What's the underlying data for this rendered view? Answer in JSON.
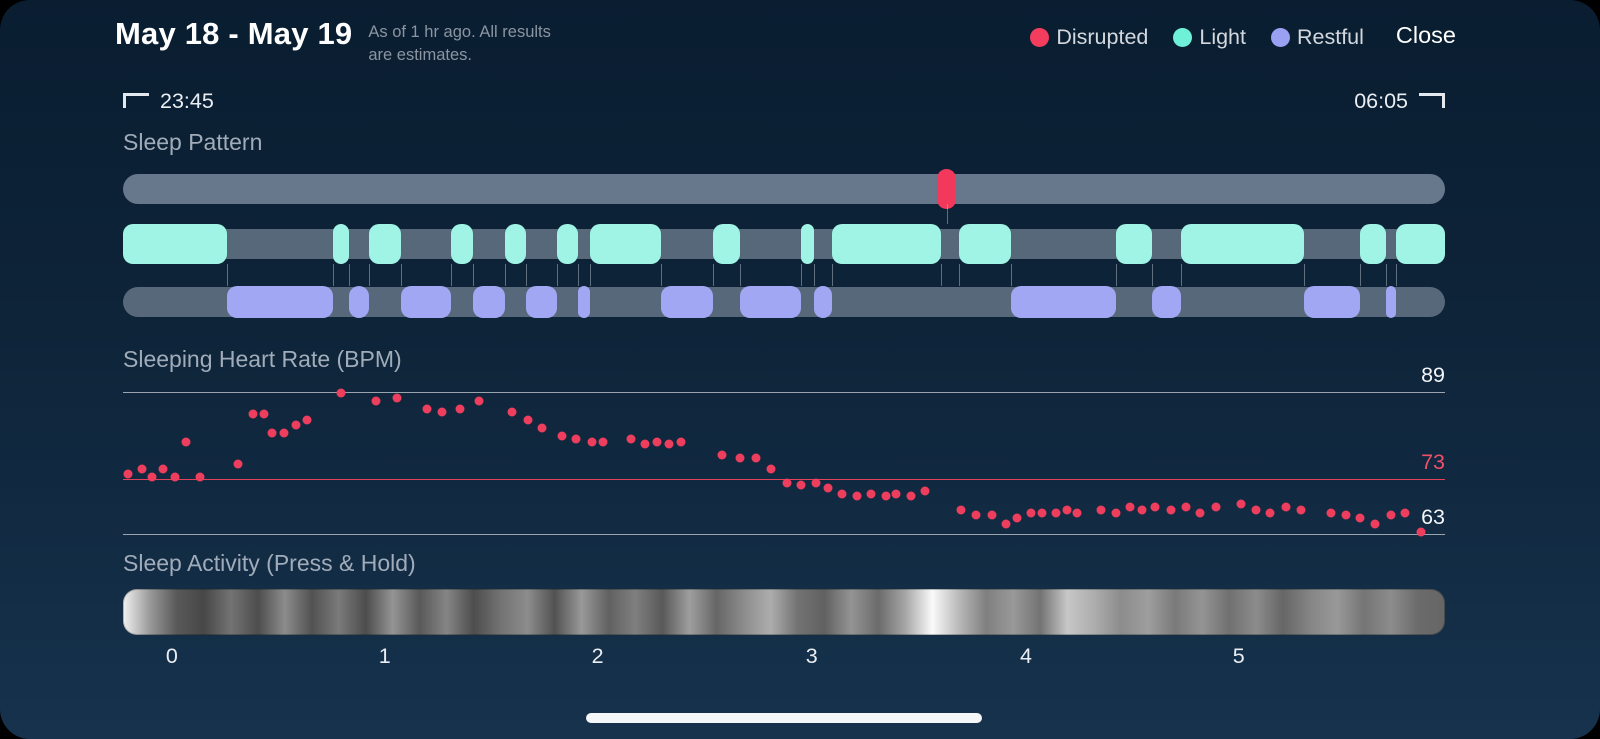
{
  "header": {
    "title": "May 18 - May 19",
    "subtitle_line1": "As of 1 hr ago. All results",
    "subtitle_line2": "are estimates.",
    "close_label": "Close",
    "legend": [
      {
        "label": "Disrupted",
        "color": "#f23d5e"
      },
      {
        "label": "Light",
        "color": "#6ef0d9"
      },
      {
        "label": "Restful",
        "color": "#9aa1f3"
      }
    ]
  },
  "timeline": {
    "start_time": "23:45",
    "end_time": "06:05"
  },
  "chart_data": [
    {
      "type": "timeline-bands",
      "title": "Sleep Pattern",
      "x_range": [
        "23:45",
        "06:05"
      ],
      "tracks": {
        "disrupted": {
          "color": "#f2395c",
          "bg_color": "#68788c",
          "segments_pct": [
            [
              61.6,
              63.0
            ]
          ]
        },
        "light": {
          "color": "#a0f4e5",
          "bg_color": "#57687b",
          "segments_pct": [
            [
              0,
              7.9
            ],
            [
              15.9,
              17.1
            ],
            [
              18.6,
              21.0
            ],
            [
              24.8,
              26.5
            ],
            [
              28.9,
              30.5
            ],
            [
              32.8,
              34.4
            ],
            [
              35.3,
              40.7
            ],
            [
              44.6,
              46.7
            ],
            [
              51.3,
              52.3
            ],
            [
              53.6,
              61.9
            ],
            [
              63.2,
              67.2
            ],
            [
              75.1,
              77.8
            ],
            [
              80.0,
              89.3
            ],
            [
              93.6,
              95.5
            ],
            [
              96.3,
              100
            ]
          ]
        },
        "restful": {
          "color": "#a2a7f4",
          "bg_color": "#57687b",
          "segments_pct": [
            [
              7.9,
              15.9
            ],
            [
              17.1,
              18.6
            ],
            [
              21.0,
              24.8
            ],
            [
              26.5,
              28.9
            ],
            [
              30.5,
              32.8
            ],
            [
              34.4,
              35.3
            ],
            [
              40.7,
              44.6
            ],
            [
              46.7,
              51.3
            ],
            [
              52.3,
              53.6
            ],
            [
              67.2,
              75.1
            ],
            [
              77.8,
              80.0
            ],
            [
              89.3,
              93.6
            ],
            [
              95.5,
              96.3
            ]
          ]
        }
      }
    },
    {
      "type": "scatter",
      "title": "Sleeping Heart Rate (BPM)",
      "ylim": [
        63,
        89
      ],
      "point_color": "#ee3e5e",
      "gridlines": [
        {
          "value": 89,
          "label": "89",
          "color": "#9aa4ae",
          "label_color": "#f3f5f7"
        },
        {
          "value": 73,
          "label": "73",
          "color": "#e0425c",
          "label_color": "#ef5068"
        },
        {
          "value": 63,
          "label": "63",
          "color": "#9aa4ae",
          "label_color": "#f3f5f7"
        }
      ],
      "points": [
        [
          0.4,
          74
        ],
        [
          1.4,
          75
        ],
        [
          2.2,
          73.5
        ],
        [
          3,
          75
        ],
        [
          3.9,
          73.5
        ],
        [
          4.8,
          80
        ],
        [
          5.8,
          73.5
        ],
        [
          8.7,
          76
        ],
        [
          9.8,
          85
        ],
        [
          10.7,
          85
        ],
        [
          11.3,
          81.5
        ],
        [
          12.2,
          81.5
        ],
        [
          13.1,
          83
        ],
        [
          13.9,
          84
        ],
        [
          16.5,
          89
        ],
        [
          19.1,
          87.5
        ],
        [
          20.7,
          88
        ],
        [
          23,
          86
        ],
        [
          24.1,
          85.5
        ],
        [
          25.5,
          86
        ],
        [
          26.9,
          87.5
        ],
        [
          29.4,
          85.5
        ],
        [
          30.6,
          84
        ],
        [
          31.7,
          82.5
        ],
        [
          33.2,
          81
        ],
        [
          34.3,
          80.5
        ],
        [
          35.5,
          80
        ],
        [
          36.3,
          80
        ],
        [
          38.4,
          80.5
        ],
        [
          39.5,
          79.5
        ],
        [
          40.4,
          80
        ],
        [
          41.3,
          79.5
        ],
        [
          42.2,
          80
        ],
        [
          45.3,
          77.5
        ],
        [
          46.7,
          77
        ],
        [
          47.9,
          77
        ],
        [
          49,
          75
        ],
        [
          50.2,
          72.5
        ],
        [
          51.3,
          72
        ],
        [
          52.4,
          72.5
        ],
        [
          53.3,
          71.5
        ],
        [
          54.4,
          70.5
        ],
        [
          55.5,
          70
        ],
        [
          56.6,
          70.5
        ],
        [
          57.7,
          70
        ],
        [
          58.5,
          70.5
        ],
        [
          59.6,
          70
        ],
        [
          60.7,
          71
        ],
        [
          63.4,
          67.5
        ],
        [
          64.5,
          66.5
        ],
        [
          65.7,
          66.5
        ],
        [
          66.8,
          65
        ],
        [
          67.6,
          66
        ],
        [
          68.7,
          67
        ],
        [
          69.5,
          67
        ],
        [
          70.6,
          67
        ],
        [
          71.4,
          67.5
        ],
        [
          72.2,
          67
        ],
        [
          74,
          67.5
        ],
        [
          75.1,
          67
        ],
        [
          76.2,
          68
        ],
        [
          77.1,
          67.5
        ],
        [
          78.1,
          68
        ],
        [
          79.3,
          67.5
        ],
        [
          80.4,
          68
        ],
        [
          81.5,
          67
        ],
        [
          82.7,
          68
        ],
        [
          84.6,
          68.5
        ],
        [
          85.7,
          67.5
        ],
        [
          86.8,
          67
        ],
        [
          88,
          68
        ],
        [
          89.1,
          67.5
        ],
        [
          91.4,
          67
        ],
        [
          92.5,
          66.5
        ],
        [
          93.6,
          66
        ],
        [
          94.7,
          65
        ],
        [
          95.9,
          66.5
        ],
        [
          97,
          67
        ],
        [
          98.2,
          63.5
        ]
      ]
    },
    {
      "type": "heatmap",
      "title": "Sleep Activity (Press & Hold)",
      "x_ticks": {
        "labels": [
          "0",
          "1",
          "2",
          "3",
          "4",
          "5"
        ],
        "positions_pct": [
          3.7,
          19.8,
          35.9,
          52.1,
          68.3,
          84.4
        ]
      },
      "intensity": [
        95,
        60,
        35,
        28,
        45,
        30,
        55,
        32,
        48,
        30,
        58,
        35,
        52,
        30,
        45,
        55,
        32,
        60,
        38,
        50,
        35,
        62,
        40,
        55,
        68,
        45,
        38,
        58,
        42,
        65,
        98,
        72,
        50,
        60,
        45,
        78,
        68,
        55,
        62,
        48,
        58,
        44,
        55,
        40,
        52,
        60,
        46,
        55,
        42,
        40
      ]
    }
  ]
}
